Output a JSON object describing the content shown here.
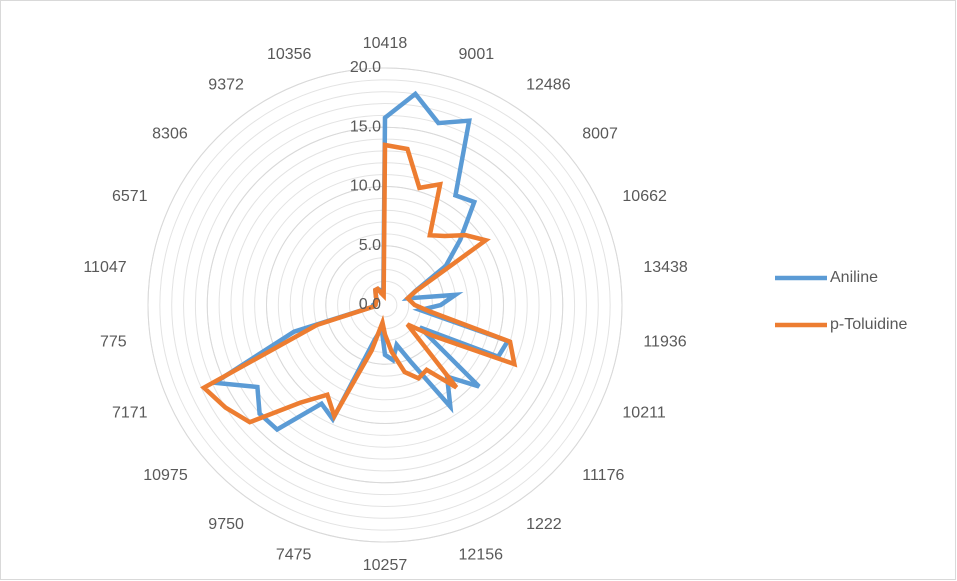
{
  "chart_data": {
    "type": "radar",
    "categories": [
      "10418",
      null,
      "9001",
      null,
      "12486",
      null,
      "8007",
      null,
      "10662",
      null,
      "13438",
      null,
      "11936",
      null,
      "10211",
      null,
      "11176",
      null,
      "1222",
      null,
      "12156",
      null,
      "10257",
      null,
      "7475",
      null,
      "9750",
      null,
      "10975",
      null,
      "7171",
      null,
      "775",
      null,
      "11047",
      null,
      "6571",
      null,
      "8306",
      null,
      "9372",
      null,
      "10356",
      null
    ],
    "series": [
      {
        "name": "Aniline",
        "color": "#5b9bd5",
        "values": [
          15.8,
          18.0,
          16.0,
          17.1,
          11.0,
          11.5,
          8.4,
          6.1,
          2.8,
          2.0,
          6.0,
          4.7,
          3.0,
          10.8,
          10.5,
          3.5,
          10.5,
          8.0,
          10.2,
          5.3,
          3.5,
          4.7,
          4.2,
          2.0,
          3.0,
          10.6,
          9.9,
          13.9,
          14.0,
          12.8,
          15.8,
          8.0,
          1.0,
          1.0,
          0.8,
          0.8,
          0.8,
          0.8,
          1.0,
          1.2,
          1.5,
          1.5,
          1.3,
          1.0
        ]
      },
      {
        "name": "p-Toluidine",
        "color": "#ed7d31",
        "values": [
          13.5,
          13.3,
          10.3,
          11.2,
          7.0,
          7.7,
          9.0,
          10.1,
          2.9,
          2.0,
          2.2,
          2.5,
          3.8,
          11.0,
          12.0,
          4.8,
          2.5,
          9.2,
          6.5,
          6.8,
          5.9,
          4.0,
          2.5,
          1.5,
          4.0,
          10.3,
          9.0,
          10.9,
          15.1,
          16.0,
          16.8,
          6.0,
          1.0,
          0.8,
          0.8,
          0.8,
          0.8,
          0.8,
          1.0,
          1.2,
          1.5,
          1.5,
          1.0,
          0.8
        ]
      }
    ],
    "ylim": [
      0,
      20
    ],
    "yticks": [
      {
        "value": 0,
        "label": "0.0"
      },
      {
        "value": 5,
        "label": "5.0"
      },
      {
        "value": 10,
        "label": "10.0"
      },
      {
        "value": 15,
        "label": "15.0"
      },
      {
        "value": 20,
        "label": "20.0"
      }
    ],
    "ygrid_step": 1,
    "grid": true,
    "legend": "right"
  }
}
